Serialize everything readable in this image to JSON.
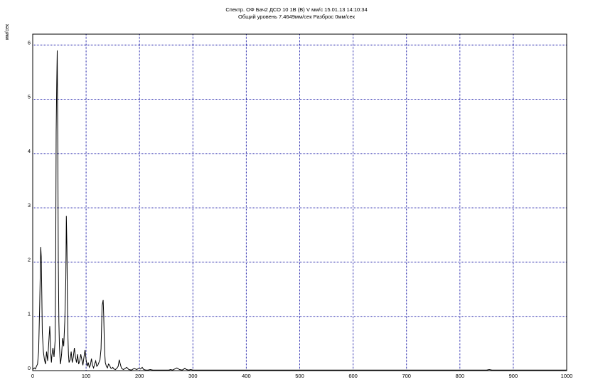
{
  "chart_data": {
    "type": "line",
    "title": "Спектр. ОФ Бач2 ДСО 10 1В (В) V мм/с 15.01.13 14:10:34",
    "subtitle": "Общий уровень 7.4649мм/сек Разброс 0мм/сек",
    "xlabel": "",
    "ylabel": "мм/сек",
    "xlim": [
      0,
      1000
    ],
    "ylim": [
      0,
      6.2
    ],
    "x_ticks": [
      0,
      100,
      200,
      300,
      400,
      500,
      600,
      700,
      800,
      900,
      1000
    ],
    "y_ticks": [
      0,
      1,
      2,
      3,
      4,
      5,
      6
    ],
    "grid": true,
    "grid_color": "#2222aa",
    "line_color": "#000000",
    "series": [
      {
        "x": [
          0,
          3,
          5,
          7,
          9,
          11,
          13,
          15,
          16,
          17,
          18,
          20,
          22,
          24,
          26,
          28,
          30,
          32,
          33,
          34,
          35,
          36,
          38,
          40,
          42,
          43,
          44,
          45,
          46,
          47,
          48,
          49,
          50,
          51,
          52,
          54,
          56,
          58,
          60,
          62,
          63,
          64,
          65,
          66,
          67,
          68,
          70,
          72,
          74,
          76,
          78,
          80,
          82,
          84,
          86,
          88,
          90,
          92,
          94,
          96,
          98,
          100,
          102,
          104,
          106,
          108,
          110,
          112,
          114,
          116,
          118,
          120,
          122,
          124,
          126,
          128,
          130,
          132,
          133,
          134,
          135,
          136,
          138,
          140,
          142,
          144,
          146,
          148,
          150,
          152,
          155,
          158,
          160,
          162,
          164,
          166,
          168,
          170,
          173,
          176,
          180,
          185,
          190,
          195,
          198,
          202,
          205,
          208,
          212,
          216,
          220,
          225,
          230,
          240,
          250,
          255,
          258,
          262,
          266,
          270,
          275,
          280,
          285,
          288,
          292,
          296,
          300,
          310,
          320,
          330,
          340,
          360,
          380,
          400,
          450,
          500,
          550,
          600,
          650,
          700,
          750,
          800,
          850,
          855,
          860,
          880,
          900,
          920,
          940,
          960,
          980,
          1000
        ],
        "y": [
          0.02,
          0.05,
          0.03,
          0.08,
          0.12,
          0.35,
          1.2,
          2.28,
          2.1,
          1.4,
          0.7,
          0.35,
          0.2,
          0.12,
          0.35,
          0.18,
          0.5,
          0.82,
          0.55,
          0.3,
          0.15,
          0.28,
          0.42,
          0.25,
          0.55,
          1.9,
          4.4,
          5.3,
          5.9,
          4.1,
          2.0,
          0.9,
          0.45,
          0.25,
          0.12,
          0.3,
          0.6,
          0.45,
          0.9,
          1.7,
          2.85,
          2.3,
          1.3,
          0.6,
          0.3,
          0.15,
          0.2,
          0.35,
          0.15,
          0.25,
          0.42,
          0.25,
          0.15,
          0.3,
          0.12,
          0.18,
          0.3,
          0.2,
          0.1,
          0.25,
          0.38,
          0.2,
          0.08,
          0.15,
          0.06,
          0.1,
          0.22,
          0.1,
          0.05,
          0.12,
          0.18,
          0.08,
          0.1,
          0.15,
          0.2,
          0.4,
          1.2,
          1.3,
          1.0,
          0.6,
          0.3,
          0.15,
          0.08,
          0.05,
          0.12,
          0.1,
          0.05,
          0.04,
          0.06,
          0.03,
          0.02,
          0.05,
          0.08,
          0.2,
          0.12,
          0.05,
          0.03,
          0.02,
          0.04,
          0.06,
          0.02,
          0.01,
          0.04,
          0.02,
          0.04,
          0.03,
          0.06,
          0.02,
          0.01,
          0.01,
          0.02,
          0.01,
          0.01,
          0.01,
          0.01,
          0.01,
          0.02,
          0.01,
          0.03,
          0.05,
          0.02,
          0.01,
          0.04,
          0.02,
          0.01,
          0.02,
          0.01,
          0.01,
          0.01,
          0.01,
          0.01,
          0.01,
          0.01,
          0.01,
          0.01,
          0.01,
          0.01,
          0.01,
          0.01,
          0.01,
          0.01,
          0.01,
          0.01,
          0.02,
          0.01,
          0.01,
          0.01,
          0.01,
          0.01,
          0.01,
          0.01,
          0.01
        ]
      }
    ]
  }
}
